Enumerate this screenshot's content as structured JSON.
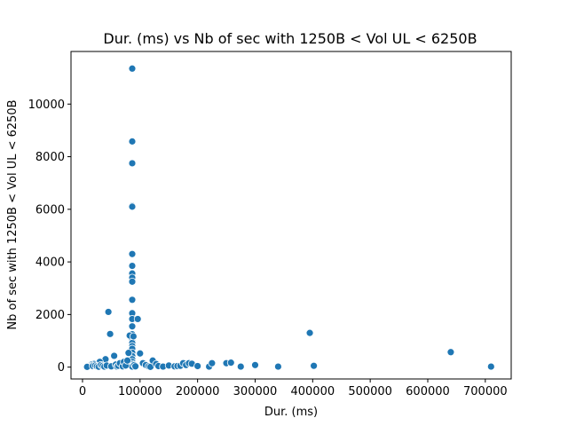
{
  "chart_data": {
    "type": "scatter",
    "title": "Dur. (ms) vs Nb of sec with 1250B < Vol UL < 6250B",
    "xlabel": "Dur. (ms)",
    "ylabel": "Nb of sec with 1250B < Vol UL < 6250B",
    "xlim": [
      -20000,
      745000
    ],
    "ylim": [
      -450,
      12000
    ],
    "xticks": [
      0,
      100000,
      200000,
      300000,
      400000,
      500000,
      600000,
      700000
    ],
    "xtick_labels": [
      "0",
      "100000",
      "200000",
      "300000",
      "400000",
      "500000",
      "600000",
      "700000"
    ],
    "yticks": [
      0,
      2000,
      4000,
      6000,
      8000,
      10000
    ],
    "ytick_labels": [
      "0",
      "2000",
      "4000",
      "6000",
      "8000",
      "10000"
    ],
    "grid": false,
    "color": "#1f77b4",
    "points": [
      [
        86400,
        11350
      ],
      [
        86400,
        8580
      ],
      [
        86400,
        7750
      ],
      [
        86400,
        6130
      ],
      [
        86400,
        6100
      ],
      [
        86400,
        4300
      ],
      [
        86400,
        3850
      ],
      [
        86400,
        3560
      ],
      [
        86400,
        3400
      ],
      [
        86400,
        3250
      ],
      [
        86400,
        2560
      ],
      [
        86400,
        2050
      ],
      [
        86400,
        1830
      ],
      [
        86400,
        1550
      ],
      [
        86400,
        1250
      ],
      [
        86400,
        1050
      ],
      [
        86400,
        920
      ],
      [
        86400,
        800
      ],
      [
        86400,
        700
      ],
      [
        86400,
        550
      ],
      [
        86400,
        420
      ],
      [
        86400,
        300
      ],
      [
        86400,
        200
      ],
      [
        86400,
        120
      ],
      [
        86400,
        60
      ],
      [
        86400,
        20
      ],
      [
        45000,
        2100
      ],
      [
        48000,
        1260
      ],
      [
        96000,
        1830
      ],
      [
        82000,
        1200
      ],
      [
        88500,
        1170
      ],
      [
        100000,
        520
      ],
      [
        80000,
        540
      ],
      [
        55000,
        430
      ],
      [
        40000,
        300
      ],
      [
        30000,
        200
      ],
      [
        20000,
        120
      ],
      [
        15000,
        90
      ],
      [
        12000,
        50
      ],
      [
        10000,
        20
      ],
      [
        8000,
        10
      ],
      [
        18000,
        40
      ],
      [
        22000,
        60
      ],
      [
        25000,
        30
      ],
      [
        28000,
        15
      ],
      [
        32000,
        80
      ],
      [
        35000,
        50
      ],
      [
        38000,
        20
      ],
      [
        42000,
        60
      ],
      [
        50000,
        30
      ],
      [
        58000,
        100
      ],
      [
        60000,
        20
      ],
      [
        62000,
        50
      ],
      [
        65000,
        150
      ],
      [
        70000,
        30
      ],
      [
        72000,
        200
      ],
      [
        75000,
        60
      ],
      [
        78000,
        250
      ],
      [
        90000,
        80
      ],
      [
        92000,
        30
      ],
      [
        105000,
        150
      ],
      [
        110000,
        80
      ],
      [
        115000,
        30
      ],
      [
        118000,
        10
      ],
      [
        122000,
        250
      ],
      [
        128000,
        120
      ],
      [
        132000,
        40
      ],
      [
        140000,
        20
      ],
      [
        150000,
        60
      ],
      [
        160000,
        30
      ],
      [
        165000,
        40
      ],
      [
        170000,
        50
      ],
      [
        175000,
        150
      ],
      [
        180000,
        80
      ],
      [
        185000,
        150
      ],
      [
        190000,
        130
      ],
      [
        200000,
        40
      ],
      [
        220000,
        20
      ],
      [
        225000,
        150
      ],
      [
        250000,
        150
      ],
      [
        258000,
        170
      ],
      [
        275000,
        20
      ],
      [
        300000,
        80
      ],
      [
        340000,
        20
      ],
      [
        395000,
        1300
      ],
      [
        402000,
        50
      ],
      [
        640000,
        570
      ],
      [
        710000,
        20
      ]
    ]
  }
}
